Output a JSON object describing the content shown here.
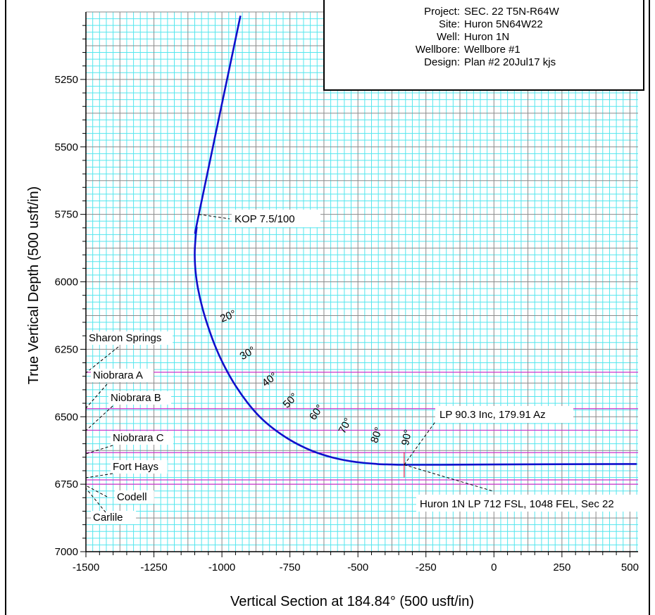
{
  "info_box": {
    "rows": [
      {
        "key": "Project:",
        "value": "SEC. 22 T5N-R64W"
      },
      {
        "key": "Site:",
        "value": "Huron 5N64W22"
      },
      {
        "key": "Well:",
        "value": "Huron 1N"
      },
      {
        "key": "Wellbore:",
        "value": "Wellbore #1"
      },
      {
        "key": "Design:",
        "value": "Plan #2 20Jul17 kjs"
      }
    ]
  },
  "chart_data": {
    "type": "line",
    "title": "",
    "xlabel": "Vertical Section at 184.84° (500 usft/in)",
    "ylabel": "True Vertical Depth (500 usft/in)",
    "xlim": [
      -1500,
      530
    ],
    "ylim": [
      7000,
      5000
    ],
    "y_inverted": true,
    "grid": true,
    "x_ticks": [
      -1500,
      -1250,
      -1000,
      -750,
      -500,
      -250,
      0,
      250,
      500
    ],
    "x_tick_labels": [
      "-1500",
      "-1250",
      "-1000",
      "-750",
      "-500",
      "-250",
      "0",
      "250",
      "500"
    ],
    "y_ticks": [
      5250,
      5500,
      5750,
      6000,
      6250,
      6500,
      6750,
      7000
    ],
    "y_tick_labels": [
      "5250",
      "5500",
      "5750",
      "6000",
      "6250",
      "6500",
      "6750",
      "7000"
    ],
    "series": [
      {
        "color": "#1010cc",
        "x": [
          -932,
          -1085,
          -1093,
          -1098,
          -1100,
          -1097,
          -1088,
          -1071,
          -1048,
          -1020,
          -988,
          -950,
          -906,
          -856,
          -799,
          -736,
          -667,
          -593,
          -512,
          -430,
          -380,
          -330,
          -200,
          0,
          250,
          525
        ],
        "y": [
          5014,
          5750,
          5800,
          5850,
          5900,
          5960,
          6025,
          6100,
          6175,
          6250,
          6318,
          6385,
          6448,
          6505,
          6553,
          6594,
          6627,
          6651,
          6667,
          6675,
          6677,
          6678,
          6678,
          6677,
          6676,
          6675
        ]
      }
    ],
    "formation_lines": {
      "color": "#cc33cc",
      "tvd": [
        6335,
        6470,
        6550,
        6633,
        6734,
        6750
      ]
    },
    "formations": [
      "Sharon Springs",
      "Niobrara A",
      "Niobrara B",
      "Niobrara C",
      "Fort Hays",
      "Codell",
      "Carlile"
    ],
    "inclination_labels": [
      {
        "text": "20°",
        "x": -1000,
        "y": 6150
      },
      {
        "text": "30°",
        "x": -925,
        "y": 6290
      },
      {
        "text": "40°",
        "x": -840,
        "y": 6390
      },
      {
        "text": "50°",
        "x": -760,
        "y": 6470
      },
      {
        "text": "60°",
        "x": -660,
        "y": 6515
      },
      {
        "text": "70°",
        "x": -550,
        "y": 6565
      },
      {
        "text": "80°",
        "x": -430,
        "y": 6600
      },
      {
        "text": "90°",
        "x": -315,
        "y": 6608
      }
    ],
    "annotations": [
      {
        "text": "KOP 7.5/100",
        "x": -1085,
        "y": 5750
      },
      {
        "text": "LP 90.3 Inc, 179.91 Az",
        "x": -330,
        "y": 6678
      },
      {
        "text": "Huron 1N LP 712 FSL, 1048 FEL, Sec 22",
        "x": -330,
        "y": 6678
      }
    ]
  }
}
